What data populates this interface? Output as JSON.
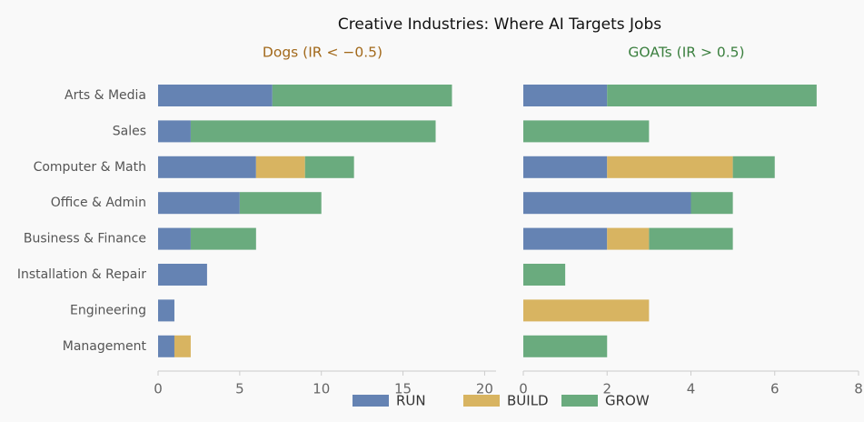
{
  "title": "Creative Industries: Where AI Targets Jobs",
  "chart_data": [
    {
      "type": "bar",
      "orientation": "horizontal",
      "stacked": true,
      "title": "Dogs (IR < −0.5)",
      "title_color": "#a2691b",
      "categories": [
        "Arts & Media",
        "Sales",
        "Computer & Math",
        "Office & Admin",
        "Business & Finance",
        "Installation & Repair",
        "Engineering",
        "Management"
      ],
      "series": [
        {
          "name": "RUN",
          "color": "#6583b3",
          "values": [
            7,
            2,
            6,
            5,
            2,
            3,
            1,
            1
          ]
        },
        {
          "name": "BUILD",
          "color": "#d8b461",
          "values": [
            0,
            0,
            3,
            0,
            0,
            0,
            0,
            1
          ]
        },
        {
          "name": "GROW",
          "color": "#6aab7e",
          "values": [
            11,
            15,
            3,
            5,
            4,
            0,
            0,
            0
          ]
        }
      ],
      "xlim": [
        0,
        20.7
      ],
      "xticks": [
        0,
        5,
        10,
        15,
        20
      ]
    },
    {
      "type": "bar",
      "orientation": "horizontal",
      "stacked": true,
      "title": "GOATs (IR > 0.5)",
      "title_color": "#3a7f3e",
      "series": [
        {
          "name": "RUN",
          "color": "#6583b3",
          "values": [
            2,
            0,
            2,
            4,
            2,
            0,
            0,
            0
          ]
        },
        {
          "name": "BUILD",
          "color": "#d8b461",
          "values": [
            0,
            0,
            3,
            0,
            1,
            0,
            3,
            0
          ]
        },
        {
          "name": "GROW",
          "color": "#6aab7e",
          "values": [
            5,
            3,
            1,
            1,
            2,
            1,
            0,
            2
          ]
        }
      ],
      "xlim": [
        0,
        8
      ],
      "xticks": [
        0,
        2,
        4,
        6,
        8
      ]
    }
  ]
}
